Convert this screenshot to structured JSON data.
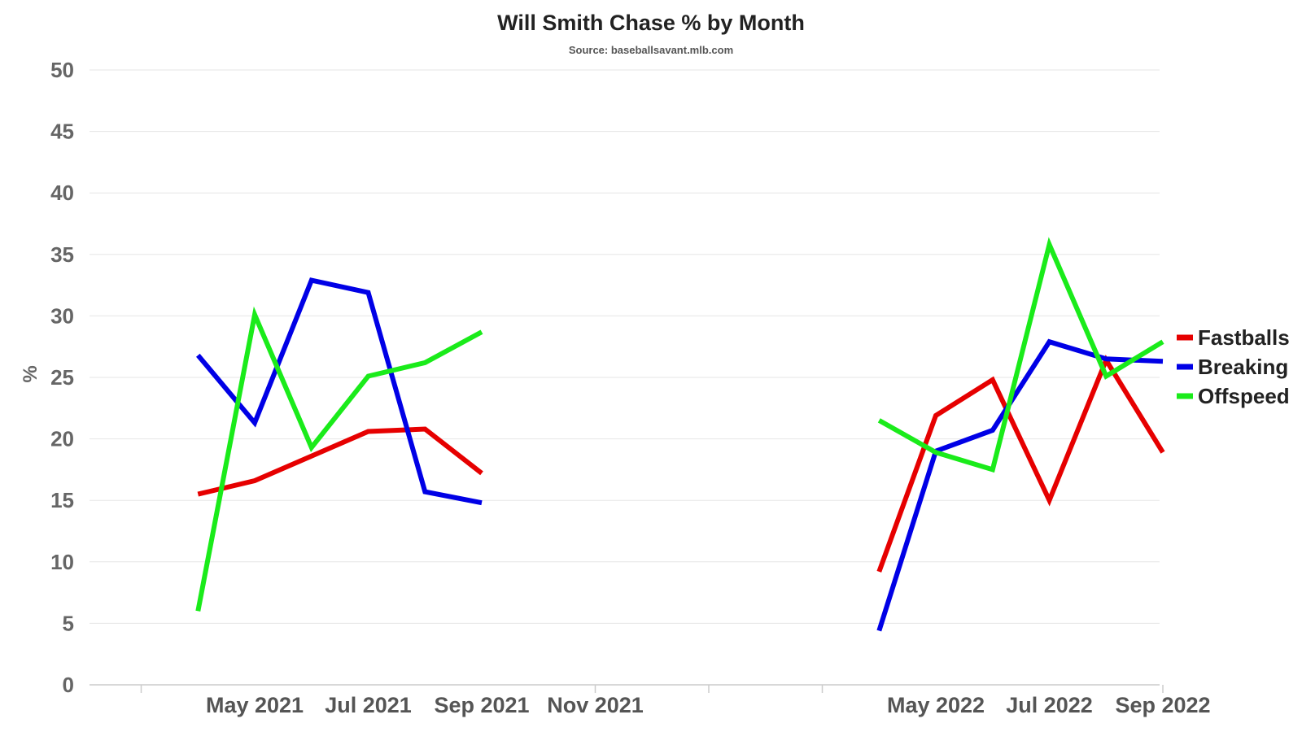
{
  "chart_data": {
    "type": "line",
    "title": "Will Smith Chase % by Month",
    "subtitle": "Source: baseballsavant.mlb.com",
    "ylabel": "%",
    "xlabel": "",
    "ylim": [
      0,
      50
    ],
    "yticks": [
      0,
      5,
      10,
      15,
      20,
      25,
      30,
      35,
      40,
      45,
      50
    ],
    "x_tick_labels": [
      "May 2021",
      "Jul 2021",
      "Sep 2021",
      "Nov 2021",
      "May 2022",
      "Jul 2022",
      "Sep 2022"
    ],
    "grid": true,
    "legend_position": "right",
    "series": [
      {
        "name": "Fastballs",
        "color": "#e60000",
        "points": [
          {
            "x": "2021-04",
            "y": 15.5
          },
          {
            "x": "2021-05",
            "y": 16.6
          },
          {
            "x": "2021-06",
            "y": 18.6
          },
          {
            "x": "2021-07",
            "y": 20.6
          },
          {
            "x": "2021-08",
            "y": 20.8
          },
          {
            "x": "2021-09",
            "y": 17.2
          },
          {
            "x": "2022-04",
            "y": 9.2
          },
          {
            "x": "2022-05",
            "y": 21.9
          },
          {
            "x": "2022-06",
            "y": 24.8
          },
          {
            "x": "2022-07",
            "y": 15.0
          },
          {
            "x": "2022-08",
            "y": 26.4
          },
          {
            "x": "2022-09",
            "y": 18.9
          }
        ]
      },
      {
        "name": "Breaking",
        "color": "#0000e6",
        "points": [
          {
            "x": "2021-04",
            "y": 26.8
          },
          {
            "x": "2021-05",
            "y": 21.3
          },
          {
            "x": "2021-06",
            "y": 32.9
          },
          {
            "x": "2021-07",
            "y": 31.9
          },
          {
            "x": "2021-08",
            "y": 15.7
          },
          {
            "x": "2021-09",
            "y": 14.8
          },
          {
            "x": "2022-04",
            "y": 4.4
          },
          {
            "x": "2022-05",
            "y": 19.0
          },
          {
            "x": "2022-06",
            "y": 20.7
          },
          {
            "x": "2022-07",
            "y": 27.9
          },
          {
            "x": "2022-08",
            "y": 26.5
          },
          {
            "x": "2022-09",
            "y": 26.3
          }
        ]
      },
      {
        "name": "Offspeed",
        "color": "#1aeb1a",
        "points": [
          {
            "x": "2021-04",
            "y": 6.0
          },
          {
            "x": "2021-05",
            "y": 30.1
          },
          {
            "x": "2021-06",
            "y": 19.3
          },
          {
            "x": "2021-07",
            "y": 25.1
          },
          {
            "x": "2021-08",
            "y": 26.2
          },
          {
            "x": "2021-09",
            "y": 28.7
          },
          {
            "x": "2022-04",
            "y": 21.5
          },
          {
            "x": "2022-05",
            "y": 18.9
          },
          {
            "x": "2022-06",
            "y": 17.5
          },
          {
            "x": "2022-07",
            "y": 35.8
          },
          {
            "x": "2022-08",
            "y": 25.1
          },
          {
            "x": "2022-09",
            "y": 27.9
          }
        ]
      }
    ]
  }
}
